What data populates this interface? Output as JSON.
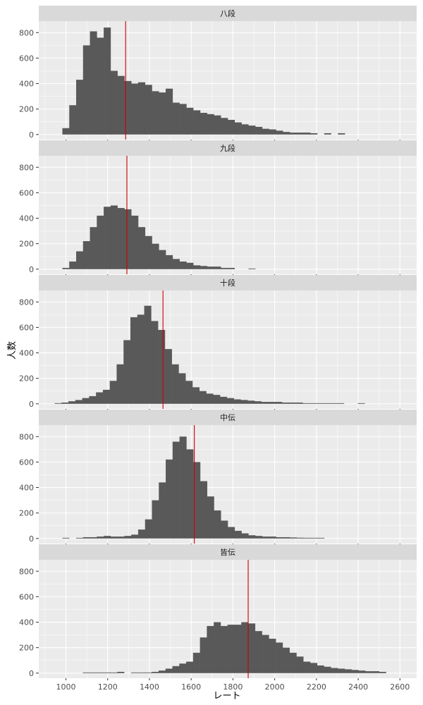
{
  "chart_data": {
    "type": "histogram",
    "xlabel": "レート",
    "ylabel": "人数",
    "xlim": [
      870,
      2680
    ],
    "ylim": [
      -40,
      890
    ],
    "x_ticks": [
      1000,
      1200,
      1400,
      1600,
      1800,
      2000,
      2200,
      2400,
      2600
    ],
    "y_ticks": [
      0,
      200,
      400,
      600,
      800
    ],
    "grid": true,
    "bin_width": 33,
    "colors": {
      "bar": "#595959",
      "mean_line": "#cc0000",
      "panel_bg": "#ebebeb",
      "strip_bg": "#d9d9d9",
      "grid": "#ffffff"
    },
    "panels": [
      {
        "name": "八段",
        "mean": 1286,
        "bin_start": 983,
        "counts": [
          50,
          230,
          430,
          700,
          810,
          760,
          840,
          500,
          460,
          420,
          400,
          410,
          390,
          340,
          330,
          360,
          250,
          240,
          210,
          190,
          170,
          160,
          150,
          130,
          115,
          95,
          80,
          70,
          60,
          45,
          40,
          30,
          20,
          15,
          15,
          15,
          10,
          0,
          10,
          0,
          10
        ]
      },
      {
        "name": "九段",
        "mean": 1292,
        "bin_start": 983,
        "counts": [
          10,
          60,
          140,
          220,
          330,
          420,
          490,
          500,
          480,
          470,
          420,
          330,
          260,
          200,
          150,
          110,
          80,
          60,
          50,
          30,
          25,
          20,
          20,
          10,
          10,
          0,
          0,
          5
        ]
      },
      {
        "name": "十段",
        "mean": 1465,
        "bin_start": 946,
        "counts": [
          5,
          10,
          20,
          30,
          45,
          60,
          90,
          110,
          180,
          310,
          500,
          680,
          700,
          770,
          650,
          580,
          430,
          310,
          240,
          180,
          130,
          100,
          80,
          70,
          55,
          45,
          35,
          30,
          25,
          20,
          15,
          15,
          15,
          10,
          10,
          10,
          5,
          5,
          5,
          5,
          5,
          5,
          0,
          0,
          5
        ]
      },
      {
        "name": "中伝",
        "mean": 1615,
        "bin_start": 983,
        "counts": [
          5,
          0,
          5,
          10,
          10,
          15,
          20,
          15,
          15,
          20,
          30,
          70,
          150,
          300,
          440,
          620,
          760,
          800,
          700,
          600,
          450,
          330,
          220,
          140,
          90,
          60,
          40,
          25,
          20,
          15,
          15,
          10,
          10,
          8,
          6,
          5,
          5,
          5
        ]
      },
      {
        "name": "皆伝",
        "mean": 1873,
        "bin_start": 1081,
        "counts": [
          5,
          5,
          5,
          5,
          5,
          10,
          0,
          5,
          5,
          5,
          10,
          20,
          35,
          55,
          75,
          90,
          160,
          280,
          370,
          400,
          370,
          380,
          380,
          400,
          390,
          330,
          300,
          270,
          240,
          200,
          160,
          130,
          90,
          80,
          60,
          50,
          40,
          35,
          30,
          25,
          20,
          15,
          15,
          10
        ]
      }
    ]
  }
}
